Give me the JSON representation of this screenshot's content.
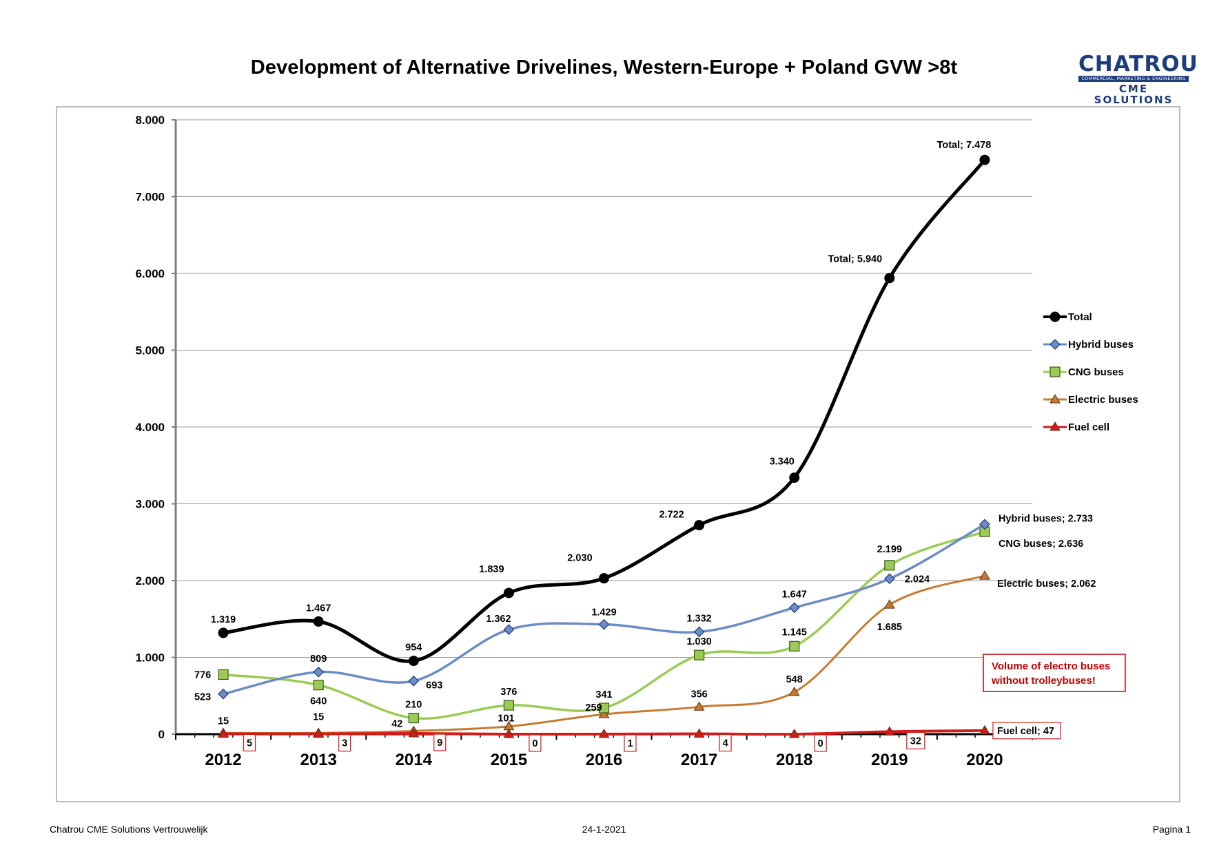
{
  "header": {
    "title": "Development of Alternative Drivelines, Western-Europe + Poland GVW >8t",
    "logo_main": "CHATROU",
    "logo_strip": "COMMERCIAL, MARKETING & ENGINEERING",
    "logo_sub": "CME SOLUTIONS"
  },
  "footer": {
    "left": "Chatrou CME Solutions Vertrouwelijk",
    "center": "24-1-2021",
    "right": "Pagina 1"
  },
  "chart_data": {
    "type": "line",
    "title": "Development of Alternative Drivelines, Western-Europe + Poland GVW >8t",
    "xlabel": "",
    "ylabel": "",
    "categories": [
      "2012",
      "2013",
      "2014",
      "2015",
      "2016",
      "2017",
      "2018",
      "2019",
      "2020"
    ],
    "ylim": [
      0,
      8000
    ],
    "yticks": [
      0,
      1000,
      2000,
      3000,
      4000,
      5000,
      6000,
      7000,
      8000
    ],
    "ytick_labels": [
      "0",
      "1.000",
      "2.000",
      "3.000",
      "4.000",
      "5.000",
      "6.000",
      "7.000",
      "8.000"
    ],
    "grid": "horizontal",
    "legend_position": "right",
    "series": [
      {
        "name": "Total",
        "color": "#000000",
        "marker": "circle",
        "values": [
          1319,
          1467,
          954,
          1839,
          2030,
          2722,
          3340,
          5940,
          7478
        ],
        "labels": [
          "1.319",
          "1.467",
          "954",
          "1.839",
          "2.030",
          "2.722",
          "3.340",
          "Total; 5.940",
          "Total; 7.478"
        ]
      },
      {
        "name": "Hybrid buses",
        "color": "#6b8cc4",
        "marker": "diamond",
        "values": [
          523,
          809,
          693,
          1362,
          1429,
          1332,
          1647,
          2024,
          2733
        ],
        "labels": [
          "523",
          "809",
          "693",
          "1.362",
          "1.429",
          "1.332",
          "1.647",
          "2.024",
          "Hybrid buses; 2.733"
        ]
      },
      {
        "name": "CNG buses",
        "color": "#9bcb55",
        "marker": "square",
        "values": [
          776,
          640,
          210,
          376,
          341,
          1030,
          1145,
          2199,
          2636
        ],
        "labels": [
          "776",
          "640",
          "210",
          "376",
          "341",
          "1.030",
          "1.145",
          "2.199",
          "CNG buses; 2.636"
        ]
      },
      {
        "name": "Electric buses",
        "color": "#c87a33",
        "marker": "triangle",
        "values": [
          15,
          15,
          42,
          101,
          259,
          356,
          548,
          1685,
          2062
        ],
        "labels": [
          "15",
          "15",
          "42",
          "101",
          "259",
          "356",
          "548",
          "1.685",
          "Electric buses; 2.062"
        ]
      },
      {
        "name": "Fuel cell",
        "color": "#d41a1a",
        "marker": "triangle",
        "values": [
          5,
          3,
          9,
          0,
          1,
          4,
          0,
          32,
          47
        ],
        "labels": [
          "5",
          "3",
          "9",
          "0",
          "1",
          "4",
          "0",
          "32",
          "Fuel cell; 47"
        ]
      }
    ],
    "annotation": "Volume of electro buses without trolleybuses!"
  }
}
